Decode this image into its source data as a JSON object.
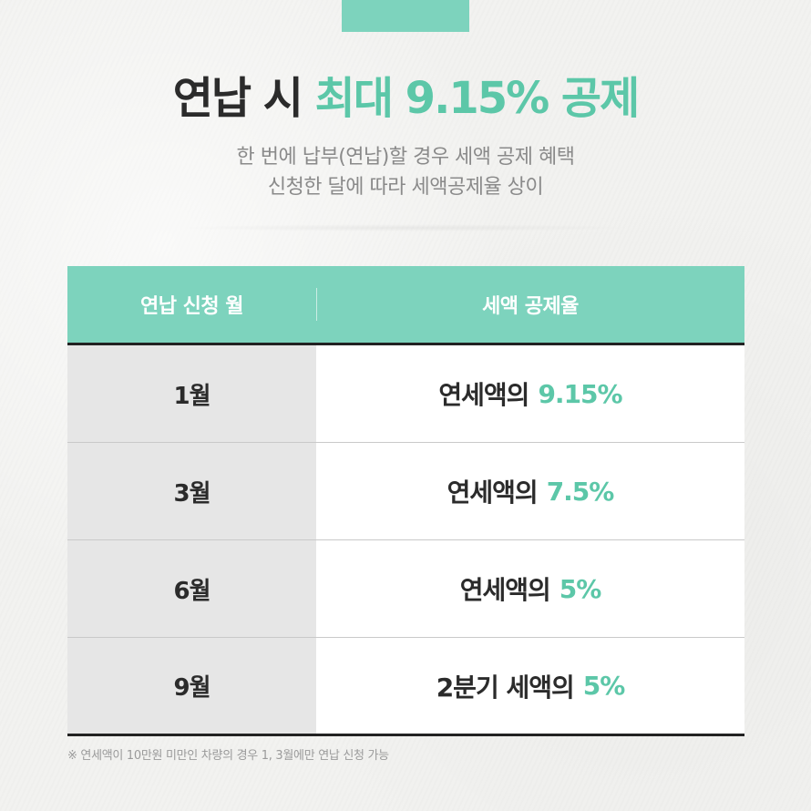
{
  "header": {
    "title_main": "연납 시",
    "title_accent": "최대 9.15% 공제",
    "subtitle_line1": "한 번에 납부(연납)할 경우 세액 공제 혜택",
    "subtitle_line2": "신청한 달에 따라 세액공제율 상이"
  },
  "table": {
    "headers": [
      "연납 신청 월",
      "세액 공제율"
    ],
    "rows": [
      {
        "month": "1월",
        "text": "연세액의",
        "rate": "9.15%"
      },
      {
        "month": "3월",
        "text": "연세액의",
        "rate": "7.5%"
      },
      {
        "month": "6월",
        "text": "연세액의",
        "rate": "5%"
      },
      {
        "month": "9월",
        "text": "2분기 세액의",
        "rate": "5%"
      }
    ]
  },
  "note": "※ 연세액이 10만원 미만인 차량의 경우 1, 3월에만 연납 신청 가능",
  "colors": {
    "accent": "#5cc7a8",
    "header_bg": "#7dd3bd",
    "text_dark": "#2b2b2b"
  }
}
